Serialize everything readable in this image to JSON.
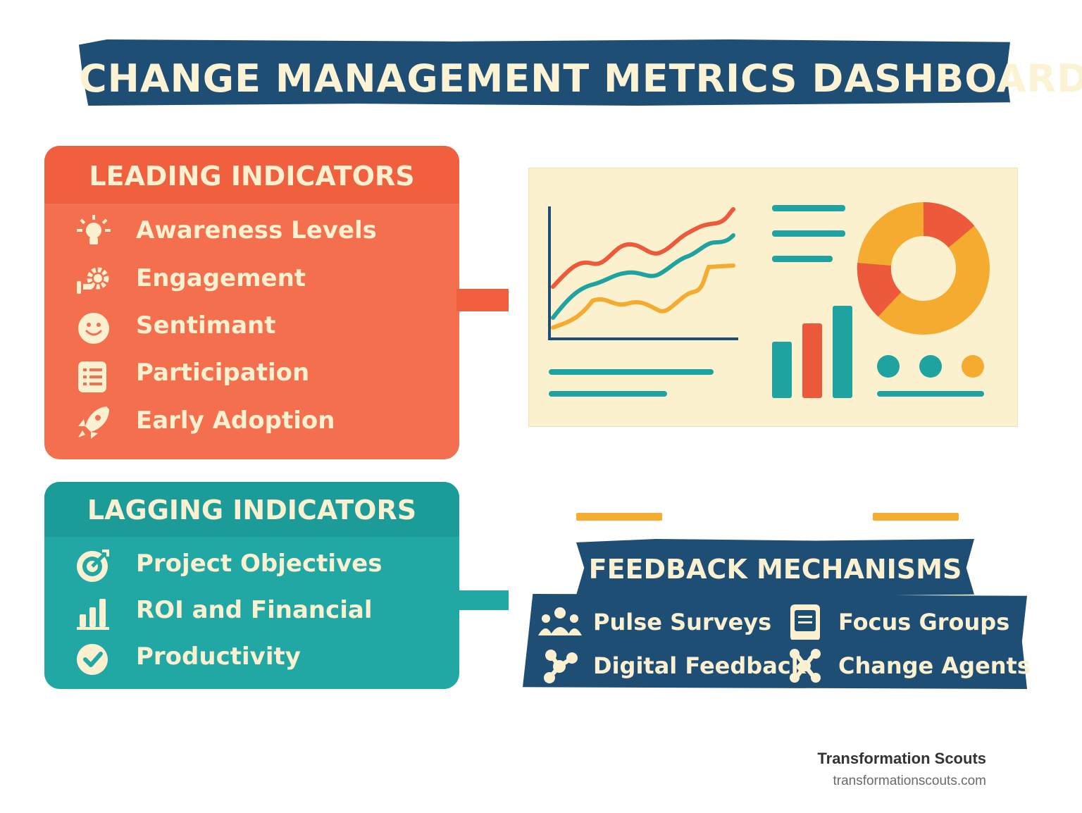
{
  "title": "CHANGE MANAGEMENT METRICS DASHBOARD",
  "leading": {
    "heading": "LEADING INDICATORS",
    "items": [
      {
        "label": "Awareness Levels",
        "icon": "lightbulb-icon"
      },
      {
        "label": "Engagement",
        "icon": "gears-icon"
      },
      {
        "label": "Sentimant",
        "icon": "smiley-icon"
      },
      {
        "label": "Participation",
        "icon": "clipboard-icon"
      },
      {
        "label": "Early Adoption",
        "icon": "rocket-icon"
      }
    ]
  },
  "lagging": {
    "heading": "LAGGING INDICATORS",
    "items": [
      {
        "label": "Project Objectives",
        "icon": "target-icon"
      },
      {
        "label": "ROI and Financial",
        "icon": "bar-chart-icon"
      },
      {
        "label": "Productivity",
        "icon": "checkmark-icon"
      }
    ]
  },
  "feedback": {
    "heading": "FEEDBACK MECHANISMS",
    "items": [
      {
        "label": "Pulse Surveys",
        "icon": "people-icon"
      },
      {
        "label": "Focus Groups",
        "icon": "tablet-icon"
      },
      {
        "label": "Digital Feedback",
        "icon": "network-icon"
      },
      {
        "label": "Change Agents",
        "icon": "hub-icon"
      }
    ]
  },
  "brand": {
    "name": "Transformation Scouts",
    "url": "transformationscouts.com"
  },
  "colors": {
    "navy": "#1f4e75",
    "coral": "#f36f4d",
    "teal": "#22a8a4",
    "cream": "#fbf0cf",
    "amber": "#f6ad2f"
  }
}
